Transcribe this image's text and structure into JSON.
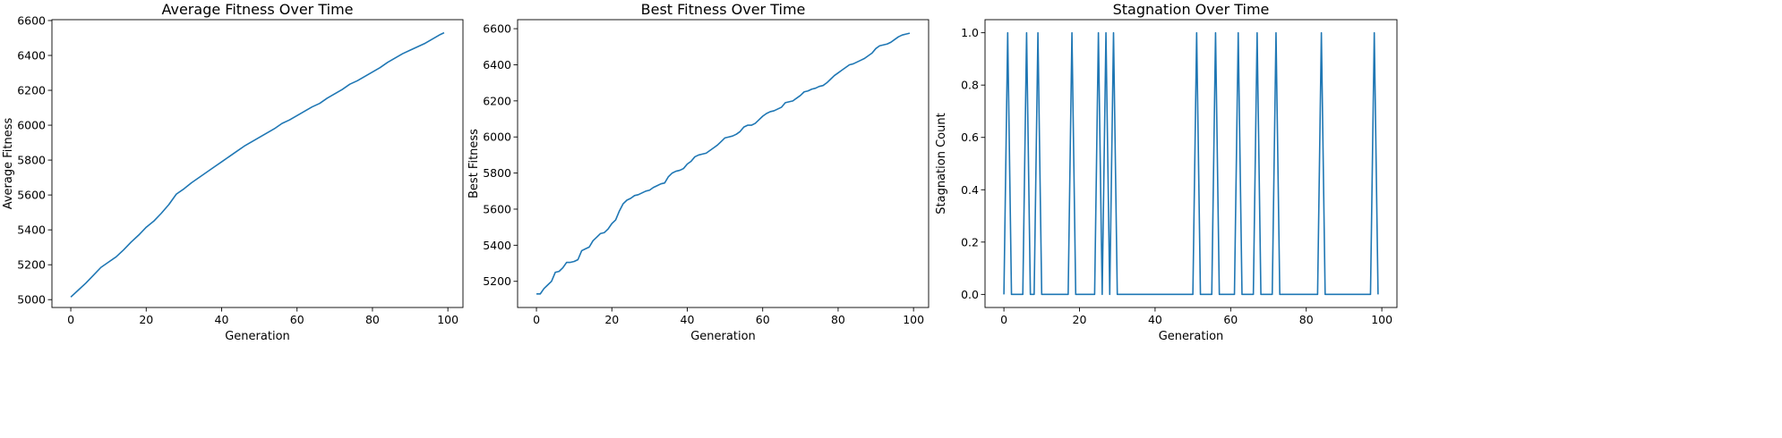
{
  "chart_data": [
    {
      "type": "line",
      "title": "Average Fitness Over Time",
      "xlabel": "Generation",
      "ylabel": "Average Fitness",
      "xlim": [
        -5,
        104
      ],
      "ylim": [
        4955,
        6605
      ],
      "xticks": [
        0,
        20,
        40,
        60,
        80,
        100
      ],
      "yticks": [
        5000,
        5200,
        5400,
        5600,
        5800,
        6000,
        6200,
        6400,
        6600
      ],
      "color": "#1f77b4",
      "grid": false,
      "series": [
        {
          "x": [
            0,
            2,
            4,
            6,
            8,
            10,
            12,
            14,
            16,
            18,
            20,
            22,
            24,
            26,
            28,
            30,
            32,
            34,
            36,
            38,
            40,
            42,
            44,
            46,
            48,
            50,
            52,
            54,
            56,
            58,
            60,
            62,
            64,
            66,
            68,
            70,
            72,
            74,
            76,
            78,
            80,
            82,
            84,
            86,
            88,
            90,
            92,
            94,
            96,
            98,
            99
          ],
          "y": [
            5015,
            5055,
            5095,
            5140,
            5185,
            5215,
            5245,
            5285,
            5330,
            5370,
            5415,
            5450,
            5495,
            5545,
            5605,
            5635,
            5670,
            5700,
            5730,
            5760,
            5790,
            5820,
            5850,
            5880,
            5905,
            5930,
            5955,
            5980,
            6010,
            6030,
            6055,
            6080,
            6105,
            6125,
            6155,
            6180,
            6205,
            6235,
            6255,
            6280,
            6305,
            6330,
            6360,
            6385,
            6410,
            6430,
            6450,
            6470,
            6495,
            6520,
            6530
          ]
        }
      ]
    },
    {
      "type": "line",
      "title": "Best Fitness Over Time",
      "xlabel": "Generation",
      "ylabel": "Best Fitness",
      "xlim": [
        -5,
        104
      ],
      "ylim": [
        5055,
        6650
      ],
      "xticks": [
        0,
        20,
        40,
        60,
        80,
        100
      ],
      "yticks": [
        5200,
        5400,
        5600,
        5800,
        6000,
        6200,
        6400,
        6600
      ],
      "color": "#1f77b4",
      "grid": false,
      "series": [
        {
          "x": [
            0,
            1,
            2,
            3,
            4,
            5,
            6,
            7,
            8,
            9,
            10,
            11,
            12,
            13,
            14,
            15,
            16,
            17,
            18,
            19,
            20,
            21,
            22,
            23,
            24,
            25,
            26,
            27,
            28,
            29,
            30,
            31,
            32,
            33,
            34,
            35,
            36,
            37,
            38,
            39,
            40,
            41,
            42,
            43,
            44,
            45,
            46,
            47,
            48,
            49,
            50,
            51,
            52,
            53,
            54,
            55,
            56,
            57,
            58,
            59,
            60,
            61,
            62,
            63,
            64,
            65,
            66,
            67,
            68,
            69,
            70,
            71,
            72,
            73,
            74,
            75,
            76,
            77,
            78,
            79,
            80,
            81,
            82,
            83,
            84,
            85,
            86,
            87,
            88,
            89,
            90,
            91,
            92,
            93,
            94,
            95,
            96,
            97,
            98,
            99
          ],
          "y": [
            5130,
            5130,
            5160,
            5180,
            5200,
            5250,
            5255,
            5275,
            5305,
            5305,
            5310,
            5320,
            5370,
            5380,
            5390,
            5425,
            5445,
            5465,
            5470,
            5490,
            5520,
            5540,
            5590,
            5630,
            5650,
            5660,
            5675,
            5680,
            5690,
            5700,
            5705,
            5720,
            5730,
            5740,
            5745,
            5780,
            5800,
            5810,
            5815,
            5825,
            5850,
            5865,
            5890,
            5900,
            5905,
            5910,
            5925,
            5940,
            5955,
            5975,
            5995,
            6000,
            6005,
            6015,
            6030,
            6055,
            6065,
            6065,
            6075,
            6095,
            6115,
            6130,
            6140,
            6145,
            6155,
            6165,
            6190,
            6195,
            6200,
            6215,
            6230,
            6250,
            6255,
            6265,
            6270,
            6280,
            6285,
            6300,
            6320,
            6340,
            6355,
            6370,
            6385,
            6400,
            6405,
            6415,
            6425,
            6435,
            6450,
            6465,
            6490,
            6505,
            6510,
            6515,
            6525,
            6540,
            6555,
            6565,
            6570,
            6575
          ]
        }
      ]
    },
    {
      "type": "line",
      "title": "Stagnation Over Time",
      "xlabel": "Generation",
      "ylabel": "Stagnation Count",
      "xlim": [
        -5,
        104
      ],
      "ylim": [
        -0.05,
        1.05
      ],
      "xticks": [
        0,
        20,
        40,
        60,
        80,
        100
      ],
      "yticks": [
        0.0,
        0.2,
        0.4,
        0.6,
        0.8,
        1.0
      ],
      "ytick_labels": [
        "0.0",
        "0.2",
        "0.4",
        "0.6",
        "0.8",
        "1.0"
      ],
      "color": "#1f77b4",
      "grid": false,
      "series": [
        {
          "x": [
            0,
            1,
            2,
            3,
            4,
            5,
            6,
            7,
            8,
            9,
            10,
            11,
            12,
            13,
            14,
            15,
            16,
            17,
            18,
            19,
            20,
            21,
            22,
            23,
            24,
            25,
            26,
            27,
            28,
            29,
            30,
            31,
            32,
            33,
            34,
            35,
            36,
            37,
            38,
            39,
            40,
            41,
            42,
            43,
            44,
            45,
            46,
            47,
            48,
            49,
            50,
            51,
            52,
            53,
            54,
            55,
            56,
            57,
            58,
            59,
            60,
            61,
            62,
            63,
            64,
            65,
            66,
            67,
            68,
            69,
            70,
            71,
            72,
            73,
            74,
            75,
            76,
            77,
            78,
            79,
            80,
            81,
            82,
            83,
            84,
            85,
            86,
            87,
            88,
            89,
            90,
            91,
            92,
            93,
            94,
            95,
            96,
            97,
            98,
            99
          ],
          "y": [
            0,
            1,
            0,
            0,
            0,
            0,
            1,
            0,
            0,
            1,
            0,
            0,
            0,
            0,
            0,
            0,
            0,
            0,
            1,
            0,
            0,
            0,
            0,
            0,
            0,
            1,
            0,
            1,
            0,
            1,
            0,
            0,
            0,
            0,
            0,
            0,
            0,
            0,
            0,
            0,
            0,
            0,
            0,
            0,
            0,
            0,
            0,
            0,
            0,
            0,
            0,
            1,
            0,
            0,
            0,
            0,
            1,
            0,
            0,
            0,
            0,
            0,
            1,
            0,
            0,
            0,
            0,
            1,
            0,
            0,
            0,
            0,
            1,
            0,
            0,
            0,
            0,
            0,
            0,
            0,
            0,
            0,
            0,
            0,
            1,
            0,
            0,
            0,
            0,
            0,
            0,
            0,
            0,
            0,
            0,
            0,
            0,
            0,
            1,
            0
          ]
        }
      ]
    }
  ]
}
